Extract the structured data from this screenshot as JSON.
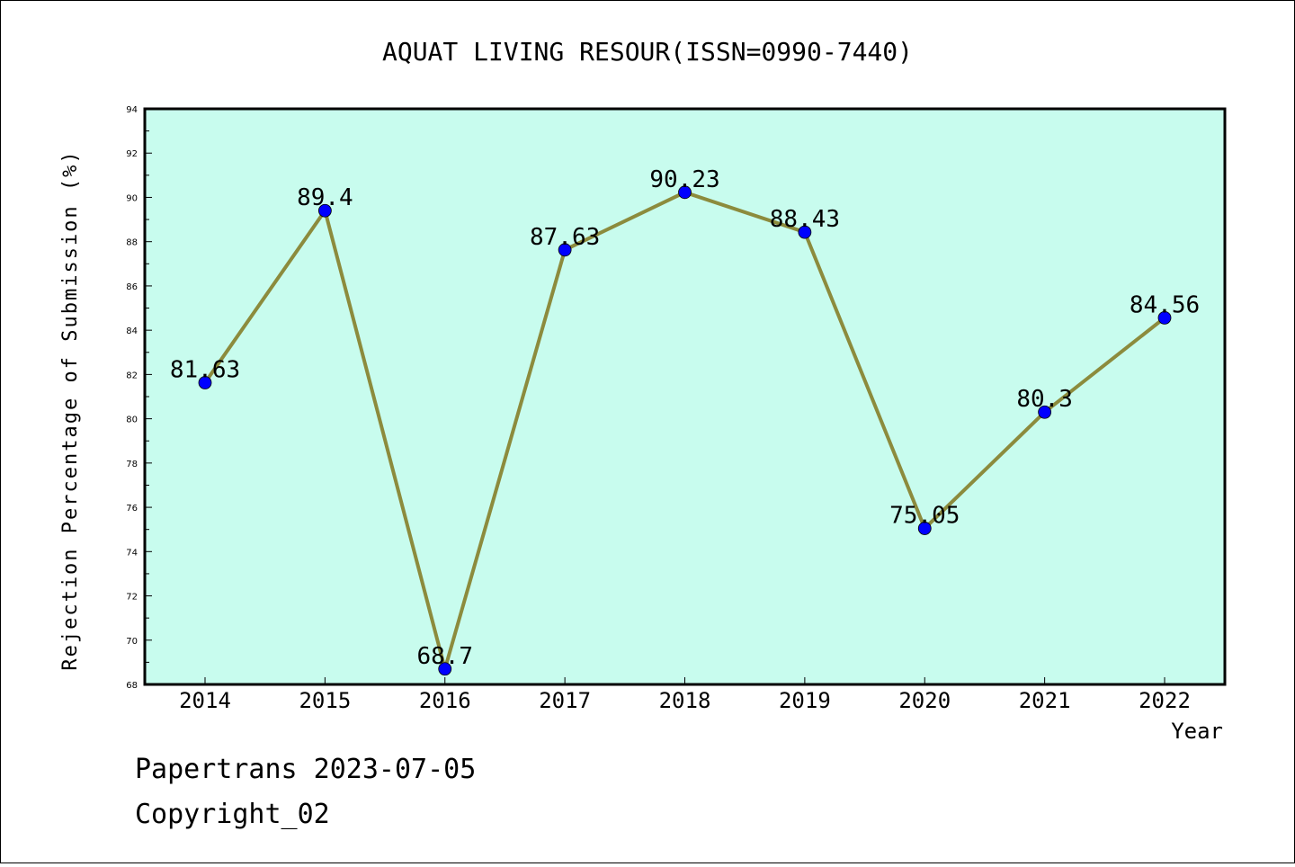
{
  "chart_data": {
    "type": "line",
    "title": "AQUAT LIVING RESOUR(ISSN=0990-7440)",
    "xlabel": "Year",
    "ylabel": "Rejection Percentage of Submission (%)",
    "categories": [
      "2014",
      "2015",
      "2016",
      "2017",
      "2018",
      "2019",
      "2020",
      "2021",
      "2022"
    ],
    "series": [
      {
        "values": [
          81.63,
          89.4,
          68.7,
          87.63,
          90.23,
          88.43,
          75.05,
          80.3,
          84.56
        ],
        "labels": [
          "81.63",
          "89.4",
          "68.7",
          "87.63",
          "90.23",
          "88.43",
          "75.05",
          "80.3",
          "84.56"
        ]
      }
    ],
    "ylim": [
      68,
      94
    ],
    "yticks": [
      "68",
      "70",
      "72",
      "74",
      "76",
      "78",
      "80",
      "82",
      "84",
      "86",
      "88",
      "90",
      "92",
      "94"
    ],
    "grid": false,
    "colors": {
      "plot_background": "#c8fcee",
      "line": "#8c8b3d",
      "marker": "#0000ff"
    }
  },
  "footer": {
    "line1": "Papertrans 2023-07-05",
    "line2": "Copyright_02"
  }
}
